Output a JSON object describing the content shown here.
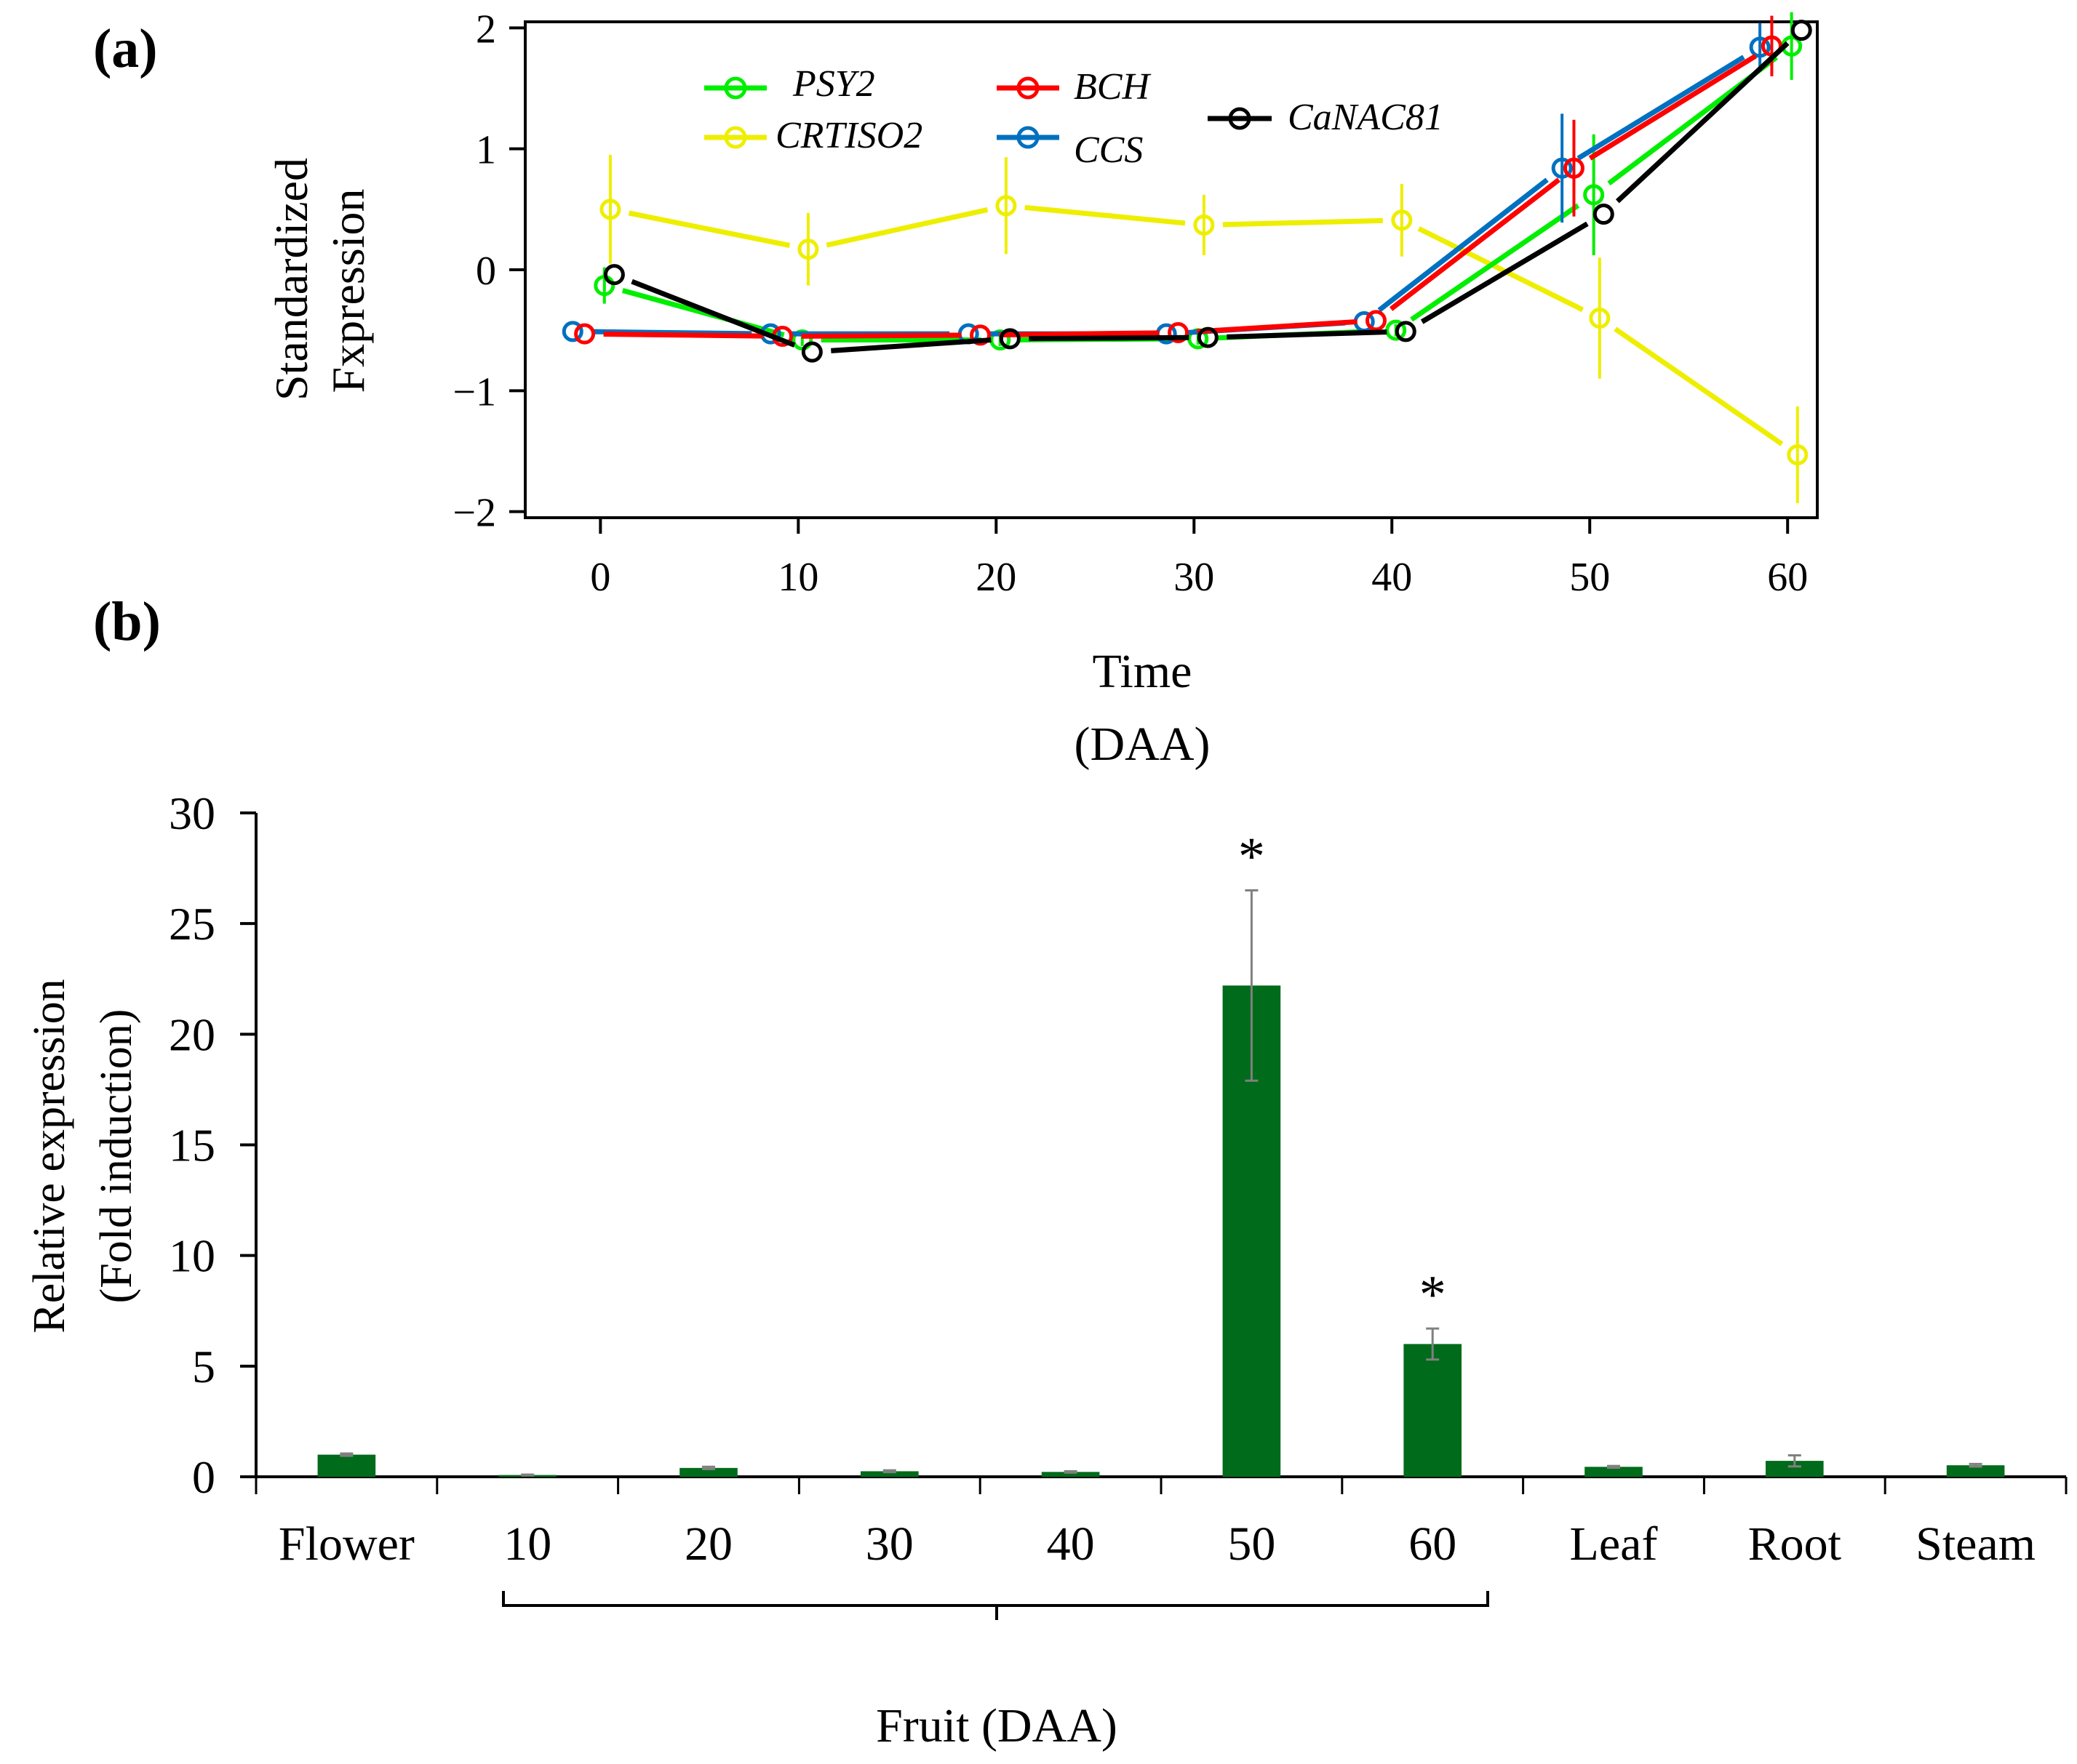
{
  "chart_data": [
    {
      "panel_label": "(a)",
      "type": "line",
      "xlabel": "Time",
      "xlabel_sub": "(DAA)",
      "ylabel_line1": "Standardized",
      "ylabel_line2": "Fxpression",
      "x": [
        0,
        10,
        20,
        30,
        40,
        50,
        60
      ],
      "xticks": [
        0,
        10,
        20,
        30,
        40,
        50,
        60
      ],
      "xtick_labels": [
        "0",
        "10",
        "20",
        "30",
        "40",
        "50",
        "60"
      ],
      "yticks": [
        2,
        1,
        0,
        -1,
        -2
      ],
      "ytick_labels": [
        "2",
        "1",
        "0",
        "−1",
        "−2"
      ],
      "ylim": [
        -2.05,
        2.05
      ],
      "xlim": [
        -3.8,
        61.5
      ],
      "series": [
        {
          "name": "PSY2",
          "color": "#00ee00",
          "offset": 0.2,
          "values": [
            -0.13,
            -0.58,
            -0.58,
            -0.57,
            -0.5,
            0.62,
            1.85
          ],
          "errors": [
            0.15,
            0.05,
            0.05,
            0.05,
            0.05,
            0.5,
            0.28
          ]
        },
        {
          "name": "CRTISO2",
          "color": "#eeee00",
          "offset": 0.5,
          "values": [
            0.5,
            0.17,
            0.53,
            0.37,
            0.41,
            -0.4,
            -1.53
          ],
          "errors": [
            0.45,
            0.3,
            0.4,
            0.25,
            0.3,
            0.5,
            0.4
          ]
        },
        {
          "name": "BCH",
          "color": "#ff0000",
          "offset": -0.8,
          "values": [
            -0.53,
            -0.55,
            -0.54,
            -0.52,
            -0.42,
            0.84,
            1.85
          ],
          "errors": [
            0.03,
            0.03,
            0.03,
            0.03,
            0.03,
            0.4,
            0.25
          ]
        },
        {
          "name": "CCS",
          "color": "#0070c0",
          "offset": -1.4,
          "values": [
            -0.51,
            -0.53,
            -0.53,
            -0.53,
            -0.43,
            0.84,
            1.84
          ],
          "errors": [
            0.03,
            0.03,
            0.03,
            0.03,
            0.03,
            0.45,
            0.2
          ]
        },
        {
          "name": "CaNAC81",
          "color": "#000000",
          "offset": 0.7,
          "values": [
            -0.04,
            -0.68,
            -0.57,
            -0.56,
            -0.51,
            0.46,
            1.98
          ],
          "errors": [
            0.02,
            0.02,
            0.02,
            0.02,
            0.02,
            0.02,
            0.02
          ]
        }
      ]
    },
    {
      "panel_label": "(b)",
      "type": "bar",
      "ylabel_line1": "Relative expression",
      "ylabel_line2": "(Fold induction)",
      "categories": [
        "Flower",
        "10",
        "20",
        "30",
        "40",
        "50",
        "60",
        "Leaf",
        "Root",
        "Steam"
      ],
      "values": [
        1.0,
        0.08,
        0.4,
        0.25,
        0.22,
        22.2,
        6.0,
        0.45,
        0.72,
        0.52
      ],
      "errors": [
        0.05,
        0.02,
        0.05,
        0.04,
        0.03,
        4.3,
        0.7,
        0.04,
        0.25,
        0.06
      ],
      "significance": [
        "",
        "",
        "",
        "",
        "",
        "*",
        "*",
        "",
        "",
        ""
      ],
      "yticks": [
        0,
        5,
        10,
        15,
        20,
        25,
        30
      ],
      "ytick_labels": [
        "0",
        "5",
        "10",
        "15",
        "20",
        "25",
        "30"
      ],
      "ylim": [
        0,
        30
      ],
      "bar_color": "#006b1a",
      "group_label": "Fruit (DAA)",
      "grid": false
    }
  ]
}
